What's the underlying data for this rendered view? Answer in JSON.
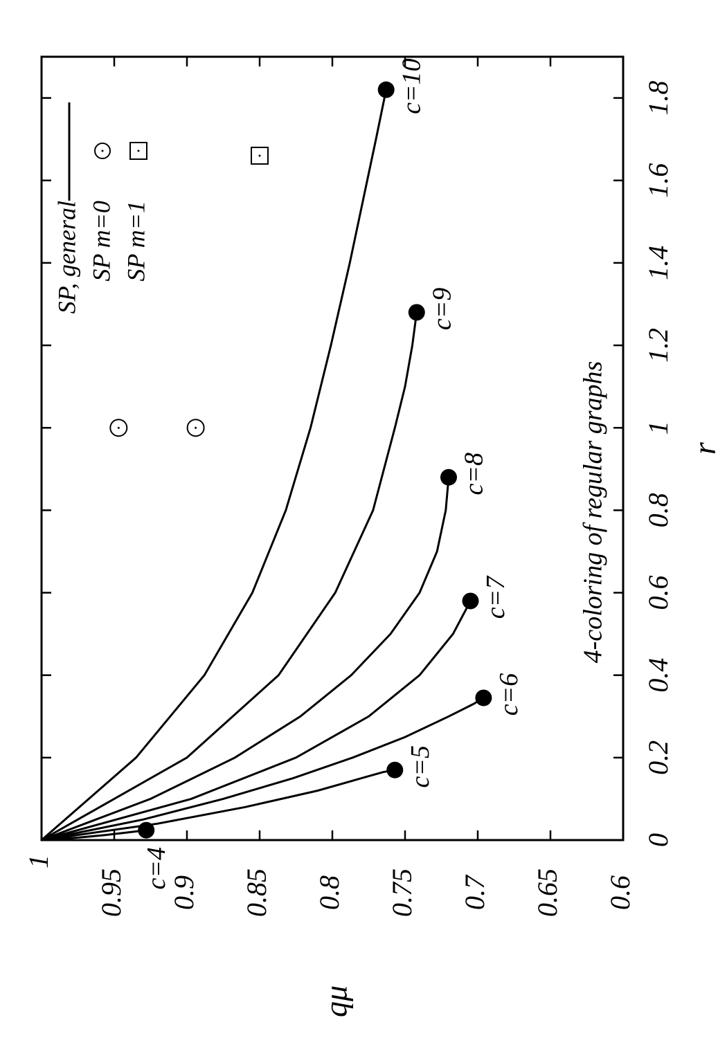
{
  "chart_data": {
    "type": "line",
    "xlabel": "r",
    "ylabel": "qμ",
    "xlim": [
      0,
      1.9
    ],
    "ylim": [
      0.6,
      1.0
    ],
    "x_ticks": [
      "0",
      "0.2",
      "0.4",
      "0.6",
      "0.8",
      "1",
      "1.2",
      "1.4",
      "1.6",
      "1.8"
    ],
    "y_ticks": [
      "1",
      "0.95",
      "0.9",
      "0.85",
      "0.8",
      "0.75",
      "0.7",
      "0.65",
      "0.6"
    ],
    "annotation": "4-coloring of regular graphs",
    "legend": [
      {
        "label": "SP, general",
        "marker": "line"
      },
      {
        "label": "SP m=0",
        "marker": "open-circle"
      },
      {
        "label": "SP m=1",
        "marker": "open-square"
      }
    ],
    "legend_position": "top-right",
    "grid": false,
    "series": [
      {
        "label": "c=4",
        "end": [
          0.024,
          0.928
        ],
        "points": [
          [
            0,
            1.0
          ],
          [
            0.006,
            0.975
          ],
          [
            0.012,
            0.957
          ],
          [
            0.018,
            0.942
          ],
          [
            0.024,
            0.928
          ]
        ]
      },
      {
        "label": "c=5",
        "end": [
          0.17,
          0.757
        ],
        "points": [
          [
            0,
            1.0
          ],
          [
            0.04,
            0.92
          ],
          [
            0.08,
            0.86
          ],
          [
            0.12,
            0.81
          ],
          [
            0.15,
            0.78
          ],
          [
            0.165,
            0.765
          ],
          [
            0.17,
            0.757
          ]
        ]
      },
      {
        "label": "c=6",
        "end": [
          0.345,
          0.696
        ],
        "points": [
          [
            0,
            1.0
          ],
          [
            0.05,
            0.93
          ],
          [
            0.1,
            0.875
          ],
          [
            0.15,
            0.827
          ],
          [
            0.2,
            0.786
          ],
          [
            0.25,
            0.75
          ],
          [
            0.3,
            0.72
          ],
          [
            0.33,
            0.703
          ],
          [
            0.345,
            0.696
          ]
        ]
      },
      {
        "label": "c=7",
        "end": [
          0.58,
          0.705
        ],
        "points": [
          [
            0,
            1.0
          ],
          [
            0.1,
            0.897
          ],
          [
            0.2,
            0.825
          ],
          [
            0.3,
            0.775
          ],
          [
            0.4,
            0.74
          ],
          [
            0.5,
            0.717
          ],
          [
            0.56,
            0.708
          ],
          [
            0.58,
            0.705
          ]
        ]
      },
      {
        "label": "c=8",
        "end": [
          0.88,
          0.72
        ],
        "points": [
          [
            0,
            1.0
          ],
          [
            0.1,
            0.925
          ],
          [
            0.2,
            0.867
          ],
          [
            0.3,
            0.822
          ],
          [
            0.4,
            0.787
          ],
          [
            0.5,
            0.76
          ],
          [
            0.6,
            0.74
          ],
          [
            0.7,
            0.728
          ],
          [
            0.8,
            0.722
          ],
          [
            0.88,
            0.72
          ]
        ]
      },
      {
        "label": "c=9",
        "end": [
          1.28,
          0.742
        ],
        "points": [
          [
            0,
            1.0
          ],
          [
            0.2,
            0.9
          ],
          [
            0.4,
            0.837
          ],
          [
            0.6,
            0.798
          ],
          [
            0.8,
            0.772
          ],
          [
            1.0,
            0.757
          ],
          [
            1.1,
            0.75
          ],
          [
            1.2,
            0.745
          ],
          [
            1.28,
            0.742
          ]
        ]
      },
      {
        "label": "c=10",
        "end": [
          1.82,
          0.763
        ],
        "points": [
          [
            0,
            1.0
          ],
          [
            0.2,
            0.935
          ],
          [
            0.4,
            0.888
          ],
          [
            0.6,
            0.855
          ],
          [
            0.8,
            0.832
          ],
          [
            1.0,
            0.815
          ],
          [
            1.2,
            0.801
          ],
          [
            1.4,
            0.788
          ],
          [
            1.6,
            0.776
          ],
          [
            1.7,
            0.77
          ],
          [
            1.82,
            0.763
          ]
        ]
      }
    ],
    "markers_m0": [
      [
        1.0,
        0.947
      ],
      [
        1.0,
        0.894
      ]
    ],
    "markers_m1": [
      [
        1.66,
        0.85
      ]
    ]
  }
}
